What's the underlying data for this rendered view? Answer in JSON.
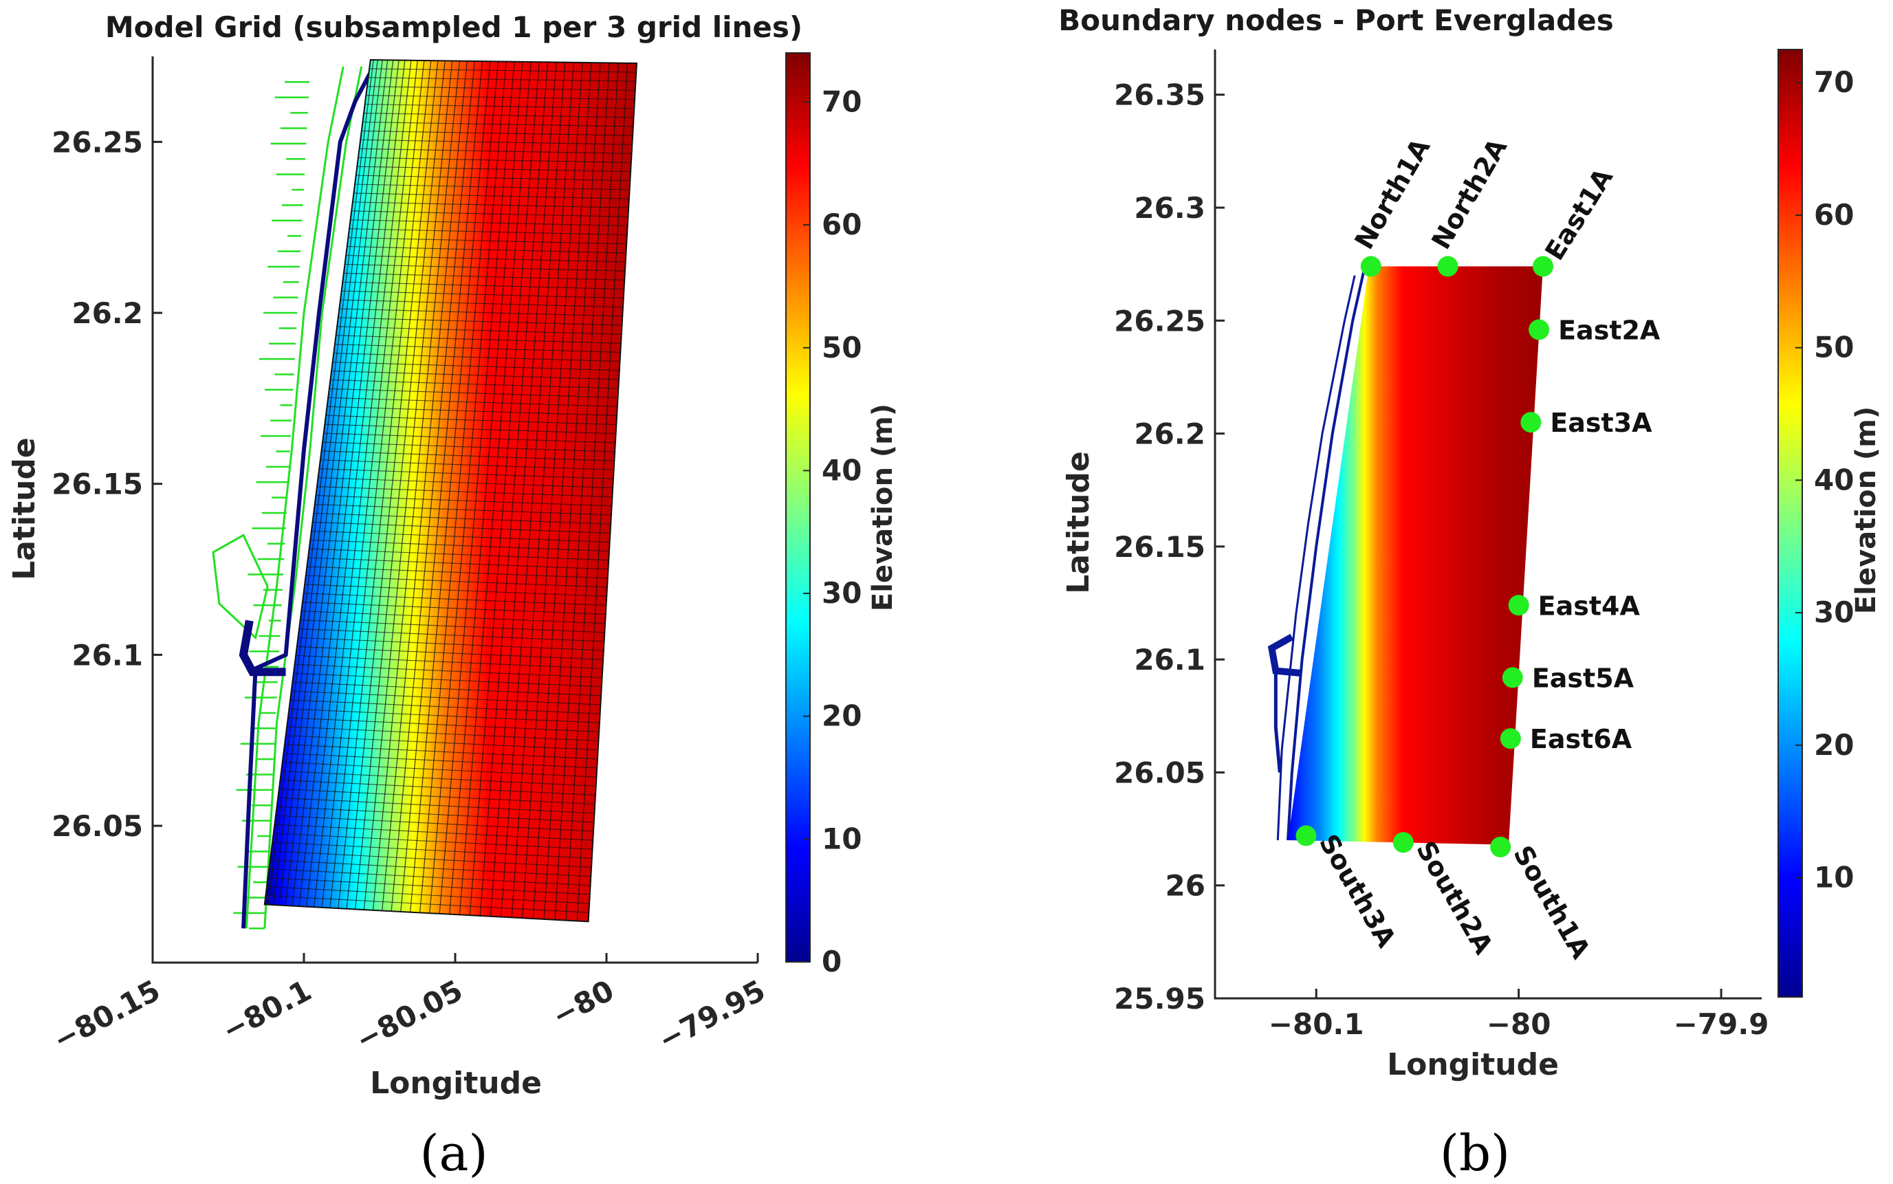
{
  "colors": {
    "jet": [
      "#00008f",
      "#0000ff",
      "#0080ff",
      "#00ffff",
      "#80ff80",
      "#ffff00",
      "#ff8000",
      "#ff0000",
      "#800000"
    ],
    "coastline_a": "#22e022",
    "coastline_b": "#0a1a9a",
    "node": "#22ee22",
    "axis": "#262626"
  },
  "chart_data": [
    {
      "type": "heatmap",
      "panel_label": "(a)",
      "title": "Model Grid (subsampled 1 per 3 grid lines)",
      "xlabel": "Longitude",
      "ylabel": "Latitude",
      "xlim": [
        -80.15,
        -79.95
      ],
      "ylim": [
        26.01,
        26.275
      ],
      "xticks": [
        -80.15,
        -80.1,
        -80.05,
        -80,
        -79.95
      ],
      "xtick_labels": [
        "−80.15",
        "−80.1",
        "−80.05",
        "−80",
        "−79.95"
      ],
      "yticks": [
        26.05,
        26.1,
        26.15,
        26.2,
        26.25
      ],
      "ytick_labels": [
        "26.05",
        "26.1",
        "26.15",
        "26.2",
        "26.25"
      ],
      "grid_corners": {
        "top_left": [
          -80.078,
          26.274
        ],
        "top_right": [
          -79.99,
          26.273
        ],
        "bottom_right": [
          -80.006,
          26.022
        ],
        "bottom_left": [
          -80.113,
          26.027
        ]
      },
      "grid_lines_across": 36,
      "grid_lines_along": 95,
      "colorbar": {
        "label": "Elevation (m)",
        "range": [
          0,
          74
        ],
        "ticks": [
          0,
          10,
          20,
          30,
          40,
          50,
          60,
          70
        ],
        "tick_labels": [
          "0",
          "10",
          "20",
          "30",
          "40",
          "50",
          "60",
          "70"
        ]
      }
    },
    {
      "type": "heatmap",
      "panel_label": "(b)",
      "title": "Boundary nodes - Port Everglades",
      "xlabel": "Longitude",
      "ylabel": "Latitude",
      "xlim": [
        -80.15,
        -79.88
      ],
      "ylim": [
        25.95,
        26.37
      ],
      "xticks": [
        -80.1,
        -80,
        -79.9
      ],
      "xtick_labels": [
        "−80.1",
        "−80",
        "−79.9"
      ],
      "yticks": [
        25.95,
        26,
        26.05,
        26.1,
        26.15,
        26.2,
        26.25,
        26.3,
        26.35
      ],
      "ytick_labels": [
        "25.95",
        "26",
        "26.05",
        "26.1",
        "26.15",
        "26.2",
        "26.25",
        "26.3",
        "26.35"
      ],
      "grid_corners": {
        "top_left": [
          -80.074,
          26.274
        ],
        "top_right": [
          -79.988,
          26.274
        ],
        "bottom_right": [
          -80.005,
          26.018
        ],
        "bottom_left": [
          -80.114,
          26.02
        ]
      },
      "boundary_nodes": [
        {
          "name": "North1A",
          "lon": -80.073,
          "lat": 26.274
        },
        {
          "name": "North2A",
          "lon": -80.035,
          "lat": 26.274
        },
        {
          "name": "East1A",
          "lon": -79.988,
          "lat": 26.274
        },
        {
          "name": "East2A",
          "lon": -79.99,
          "lat": 26.246
        },
        {
          "name": "East3A",
          "lon": -79.994,
          "lat": 26.205
        },
        {
          "name": "East4A",
          "lon": -80.0,
          "lat": 26.124
        },
        {
          "name": "East5A",
          "lon": -80.003,
          "lat": 26.092
        },
        {
          "name": "East6A",
          "lon": -80.004,
          "lat": 26.065
        },
        {
          "name": "South3A",
          "lon": -80.105,
          "lat": 26.022
        },
        {
          "name": "South2A",
          "lon": -80.057,
          "lat": 26.019
        },
        {
          "name": "South1A",
          "lon": -80.009,
          "lat": 26.017
        }
      ],
      "colorbar": {
        "label": "Elevation (m)",
        "range": [
          1,
          72.5
        ],
        "ticks": [
          10,
          20,
          30,
          40,
          50,
          60,
          70
        ],
        "tick_labels": [
          "10",
          "20",
          "30",
          "40",
          "50",
          "60",
          "70"
        ]
      }
    }
  ]
}
